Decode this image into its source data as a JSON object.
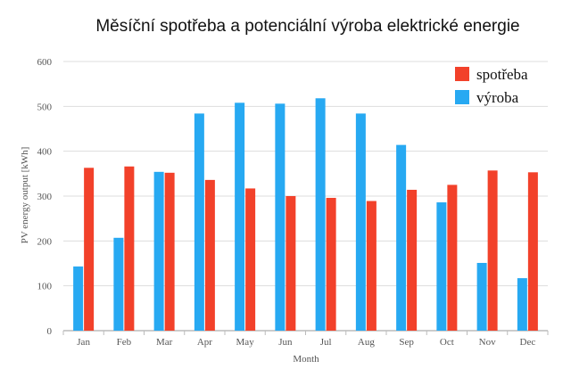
{
  "chart_data": {
    "type": "bar",
    "title": "Měsíční spotřeba a potenciální výroba elektrické energie",
    "xlabel": "Month",
    "ylabel": "PV energy output [kWh]",
    "categories": [
      "Jan",
      "Feb",
      "Mar",
      "Apr",
      "May",
      "Jun",
      "Jul",
      "Aug",
      "Sep",
      "Oct",
      "Nov",
      "Dec"
    ],
    "ylim": [
      0,
      600
    ],
    "yticks": [
      0,
      100,
      200,
      300,
      400,
      500,
      600
    ],
    "grid": true,
    "legend_position": "top-right",
    "series": [
      {
        "name": "výroba",
        "color": "#27a9f2",
        "values": [
          143,
          207,
          354,
          484,
          508,
          506,
          518,
          484,
          414,
          286,
          151,
          117
        ]
      },
      {
        "name": "spotřeba",
        "color": "#f2412a",
        "values": [
          363,
          366,
          352,
          336,
          317,
          300,
          296,
          289,
          314,
          325,
          357,
          353
        ]
      }
    ],
    "legend_order": [
      "spotřeba",
      "výroba"
    ]
  }
}
